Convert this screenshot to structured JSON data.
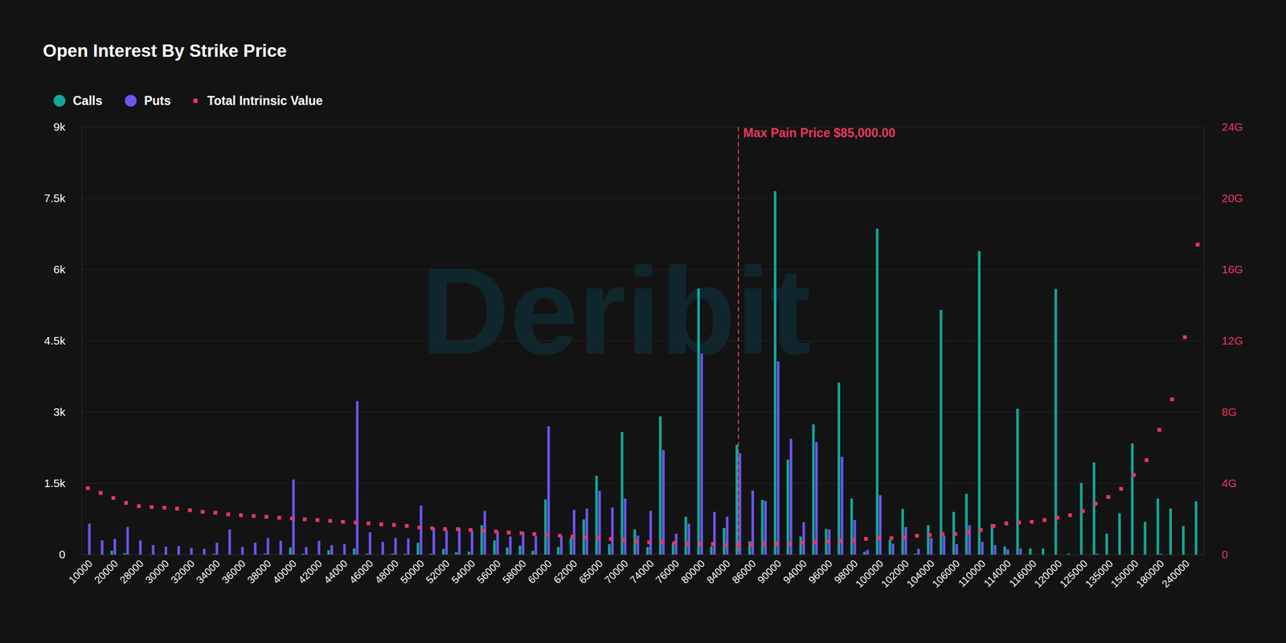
{
  "chart_data": {
    "type": "bar",
    "title": "Open Interest By Strike Price",
    "watermark": "Deribit",
    "categories": [
      "10000",
      null,
      "20000",
      null,
      "28000",
      null,
      "30000",
      null,
      "32000",
      null,
      "34000",
      null,
      "36000",
      null,
      "38000",
      null,
      "40000",
      null,
      "42000",
      null,
      "44000",
      null,
      "46000",
      null,
      "48000",
      null,
      "50000",
      null,
      "52000",
      null,
      "54000",
      null,
      "56000",
      null,
      "58000",
      null,
      "60000",
      null,
      "62000",
      null,
      "65000",
      null,
      "70000",
      null,
      "74000",
      null,
      "76000",
      null,
      "80000",
      null,
      "84000",
      null,
      "86000",
      null,
      "90000",
      null,
      "94000",
      null,
      "96000",
      null,
      "98000",
      null,
      "100000",
      null,
      "102000",
      null,
      "104000",
      null,
      "106000",
      null,
      "110000",
      null,
      "114000",
      null,
      "116000",
      null,
      "120000",
      null,
      "125000",
      null,
      "135000",
      null,
      "150000",
      null,
      "180000",
      null,
      "240000",
      null
    ],
    "series": [
      {
        "name": "Calls",
        "type": "bar",
        "color": "#14a89b",
        "marker": "circle",
        "values": [
          0,
          0,
          80,
          30,
          0,
          0,
          0,
          0,
          0,
          0,
          20,
          0,
          0,
          0,
          20,
          0,
          150,
          20,
          0,
          90,
          0,
          130,
          20,
          0,
          20,
          20,
          250,
          20,
          120,
          50,
          60,
          620,
          300,
          150,
          190,
          80,
          1160,
          160,
          350,
          740,
          1660,
          220,
          2580,
          530,
          160,
          2910,
          250,
          800,
          5600,
          170,
          560,
          2310,
          280,
          1150,
          7650,
          2000,
          380,
          2740,
          540,
          3620,
          1180,
          60,
          6860,
          310,
          960,
          20,
          620,
          5150,
          900,
          1280,
          6390,
          640,
          170,
          3070,
          130,
          130,
          5590,
          20,
          1510,
          1940,
          440,
          870,
          2340,
          690,
          1180,
          970,
          600,
          1120
        ]
      },
      {
        "name": "Puts",
        "type": "bar",
        "color": "#6d55f2",
        "marker": "circle",
        "values": [
          650,
          300,
          330,
          580,
          300,
          200,
          170,
          180,
          140,
          120,
          250,
          530,
          160,
          250,
          350,
          290,
          1580,
          160,
          290,
          200,
          220,
          3230,
          470,
          270,
          350,
          340,
          1030,
          560,
          510,
          560,
          500,
          920,
          490,
          380,
          480,
          390,
          2700,
          390,
          940,
          970,
          1340,
          990,
          1180,
          400,
          920,
          2200,
          440,
          650,
          4230,
          900,
          800,
          2130,
          1350,
          1130,
          4070,
          2440,
          680,
          2370,
          530,
          2060,
          730,
          100,
          1250,
          230,
          580,
          120,
          350,
          400,
          220,
          620,
          270,
          200,
          110,
          130,
          0,
          0,
          0,
          0,
          0,
          20,
          0,
          0,
          0,
          0,
          20,
          0,
          0,
          0
        ]
      },
      {
        "name": "Total Intrinsic Value",
        "type": "scatter",
        "color": "#e8385c",
        "marker": "square",
        "axis": "y2",
        "values": [
          3.73,
          3.46,
          3.18,
          2.9,
          2.72,
          2.67,
          2.63,
          2.58,
          2.49,
          2.4,
          2.35,
          2.26,
          2.21,
          2.17,
          2.12,
          2.07,
          2.03,
          1.98,
          1.94,
          1.89,
          1.84,
          1.8,
          1.75,
          1.7,
          1.66,
          1.61,
          1.52,
          1.47,
          1.43,
          1.43,
          1.38,
          1.34,
          1.29,
          1.24,
          1.2,
          1.15,
          1.1,
          1.06,
          1.01,
          0.97,
          0.92,
          0.88,
          0.83,
          0.74,
          0.69,
          0.69,
          0.65,
          0.6,
          0.6,
          0.6,
          0.55,
          0.55,
          0.55,
          0.6,
          0.6,
          0.6,
          0.65,
          0.69,
          0.74,
          0.78,
          0.78,
          0.88,
          0.92,
          0.92,
          0.97,
          1.06,
          1.1,
          1.15,
          1.15,
          1.24,
          1.38,
          1.61,
          1.75,
          1.8,
          1.84,
          1.94,
          2.07,
          2.21,
          2.44,
          2.86,
          3.23,
          3.69,
          4.47,
          5.3,
          7.0,
          8.71,
          12.2,
          17.4
        ]
      }
    ],
    "ylim": [
      0,
      9000
    ],
    "yticks": [
      0,
      {
        "value": 1500,
        "label": "1.5k"
      },
      {
        "value": 3000,
        "label": "3k"
      },
      {
        "value": 4500,
        "label": "4.5k"
      },
      {
        "value": 6000,
        "label": "6k"
      },
      {
        "value": 7500,
        "label": "7.5k"
      },
      {
        "value": 9000,
        "label": "9k"
      }
    ],
    "y2lim": [
      0,
      24
    ],
    "y2ticks": [
      0,
      {
        "value": 4,
        "label": "4G"
      },
      {
        "value": 8,
        "label": "8G"
      },
      {
        "value": 12,
        "label": "12G"
      },
      {
        "value": 16,
        "label": "16G"
      },
      {
        "value": 20,
        "label": "20G"
      },
      {
        "value": 24,
        "label": "24G"
      }
    ],
    "annotations": [
      {
        "text": "Max Pain Price $85,000.00",
        "x": 51,
        "color": "#e8385c",
        "line_style": "dashed"
      }
    ],
    "grid": true,
    "legend": "top-left"
  }
}
